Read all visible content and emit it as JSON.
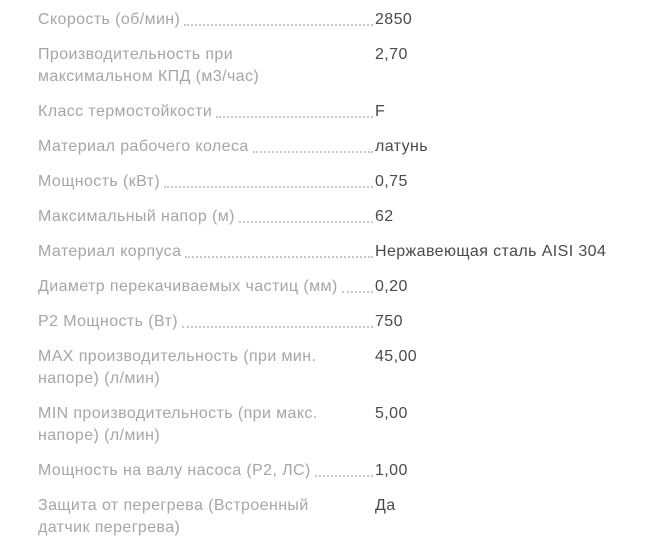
{
  "colors": {
    "label": "#a6a6a6",
    "value": "#4a4a4a",
    "dots": "#c8c8c8",
    "background": "#ffffff"
  },
  "spec_sheet": {
    "description": "product specification list with dotted leaders"
  },
  "rows": [
    {
      "label": "Скорость (об/мин)",
      "value": "2850",
      "dots": true
    },
    {
      "label": "Производительность при\nмаксимальном КПД (м3/час)",
      "value": "2,70",
      "dots": false
    },
    {
      "label": "Класс термостойкости",
      "value": "F",
      "dots": true
    },
    {
      "label": "Материал рабочего колеса",
      "value": "латунь",
      "dots": true
    },
    {
      "label": "Мощность (кВт)",
      "value": "0,75",
      "dots": true
    },
    {
      "label": "Максимальный напор (м)",
      "value": "62",
      "dots": true
    },
    {
      "label": "Материал корпуса",
      "value": "Нержавеющая сталь AISI 304",
      "dots": true
    },
    {
      "label": "Диаметр перекачиваемых частиц (мм)",
      "value": "0,20",
      "dots": true
    },
    {
      "label": "P2 Мощность (Вт)",
      "value": "750",
      "dots": true
    },
    {
      "label": "MAX производительность (при мин.\nнапоре) (л/мин)",
      "value": "45,00",
      "dots": false
    },
    {
      "label": "MIN производительность (при макс.\nнапоре) (л/мин)",
      "value": "5,00",
      "dots": false
    },
    {
      "label": "Мощность на валу насоса (P2, ЛС)",
      "value": "1,00",
      "dots": true
    },
    {
      "label": "Защита от перегрева (Встроенный\nдатчик перегрева)",
      "value": "Да",
      "dots": false
    }
  ]
}
